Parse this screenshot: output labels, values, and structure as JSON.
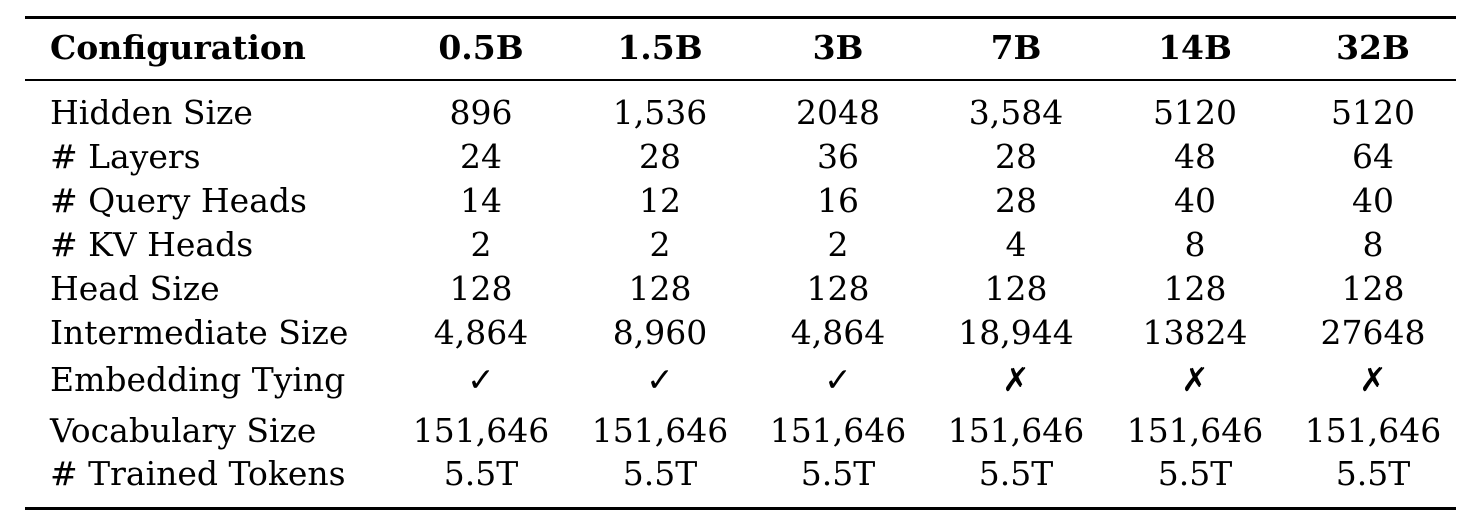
{
  "table": {
    "columns": [
      "Configuration",
      "0.5B",
      "1.5B",
      "3B",
      "7B",
      "14B",
      "32B"
    ],
    "rows": [
      {
        "label": "Hidden Size",
        "values": [
          "896",
          "1,536",
          "2048",
          "3,584",
          "5120",
          "5120"
        ]
      },
      {
        "label": "# Layers",
        "values": [
          "24",
          "28",
          "36",
          "28",
          "48",
          "64"
        ]
      },
      {
        "label": "# Query Heads",
        "values": [
          "14",
          "12",
          "16",
          "28",
          "40",
          "40"
        ]
      },
      {
        "label": "# KV Heads",
        "values": [
          "2",
          "2",
          "2",
          "4",
          "8",
          "8"
        ]
      },
      {
        "label": "Head Size",
        "values": [
          "128",
          "128",
          "128",
          "128",
          "128",
          "128"
        ]
      },
      {
        "label": "Intermediate Size",
        "values": [
          "4,864",
          "8,960",
          "4,864",
          "18,944",
          "13824",
          "27648"
        ]
      },
      {
        "label": "Embedding Tying",
        "values": [
          "✓",
          "✓",
          "✓",
          "✗",
          "✗",
          "✗"
        ]
      },
      {
        "label": "Vocabulary Size",
        "values": [
          "151,646",
          "151,646",
          "151,646",
          "151,646",
          "151,646",
          "151,646"
        ]
      },
      {
        "label": "# Trained Tokens",
        "values": [
          "5.5T",
          "5.5T",
          "5.5T",
          "5.5T",
          "5.5T",
          "5.5T"
        ]
      }
    ]
  }
}
